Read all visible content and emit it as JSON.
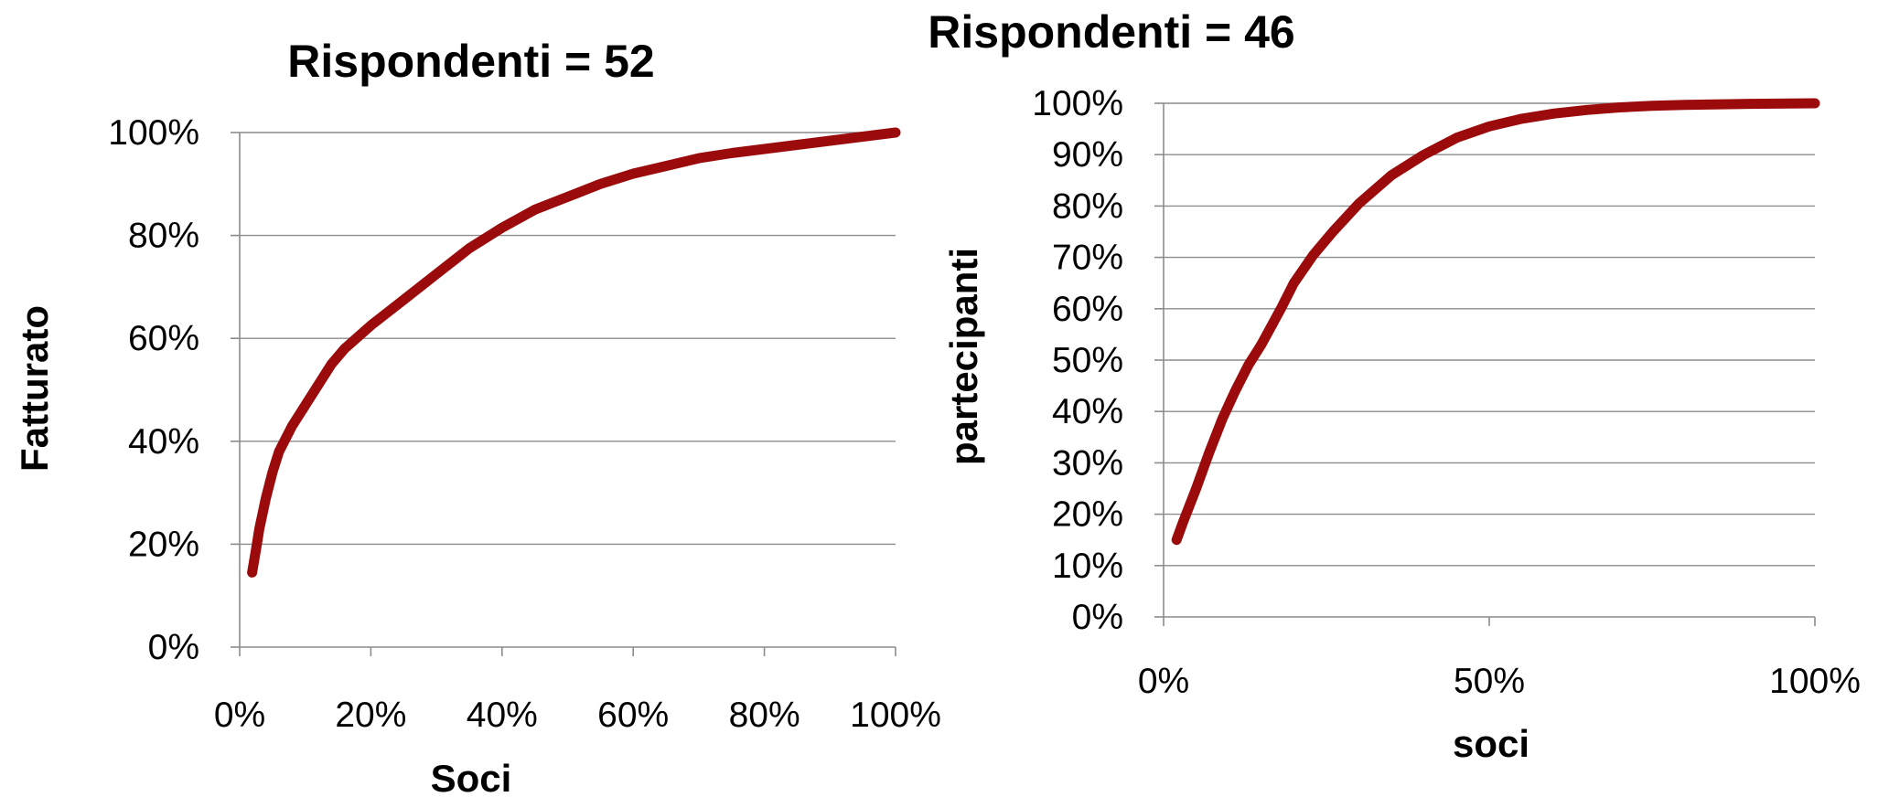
{
  "chart_data": [
    {
      "type": "line",
      "title": "Rispondenti = 52",
      "xlabel": "Soci",
      "ylabel": "Fatturato",
      "xlim": [
        0,
        100
      ],
      "ylim": [
        0,
        100
      ],
      "x_ticks": [
        "0%",
        "20%",
        "40%",
        "60%",
        "80%",
        "100%"
      ],
      "y_ticks": [
        "0%",
        "20%",
        "40%",
        "60%",
        "80%",
        "100%"
      ],
      "x_tick_values": [
        0,
        20,
        40,
        60,
        80,
        100
      ],
      "y_tick_values": [
        0,
        20,
        40,
        60,
        80,
        100
      ],
      "grid": "horizontal",
      "color": "#9c0b0b",
      "series": [
        {
          "x": [
            1.9,
            2.5,
            3.0,
            4.0,
            5.0,
            6.0,
            8.0,
            10.0,
            12.0,
            14.0,
            16.0,
            20.0,
            25.0,
            30.0,
            35.0,
            40.0,
            45.0,
            50.0,
            55.0,
            60.0,
            65.0,
            70.0,
            75.0,
            80.0,
            85.0,
            90.0,
            95.0,
            100.0
          ],
          "y": [
            14.5,
            19.0,
            23.0,
            29.0,
            34.0,
            38.0,
            43.0,
            47.0,
            51.0,
            55.0,
            58.0,
            62.5,
            67.5,
            72.5,
            77.5,
            81.5,
            85.0,
            87.5,
            90.0,
            92.0,
            93.5,
            95.0,
            96.0,
            96.8,
            97.6,
            98.4,
            99.2,
            100.0
          ]
        }
      ]
    },
    {
      "type": "line",
      "title": "Rispondenti = 46",
      "xlabel": "soci",
      "ylabel": "partecipanti",
      "xlim": [
        0,
        100
      ],
      "ylim": [
        0,
        100
      ],
      "x_ticks": [
        "0%",
        "50%",
        "100%"
      ],
      "y_ticks": [
        "0%",
        "10%",
        "20%",
        "30%",
        "40%",
        "50%",
        "60%",
        "70%",
        "80%",
        "90%",
        "100%"
      ],
      "x_tick_values": [
        0,
        50,
        100
      ],
      "y_tick_values": [
        0,
        10,
        20,
        30,
        40,
        50,
        60,
        70,
        80,
        90,
        100
      ],
      "grid": "horizontal",
      "color": "#9c0b0b",
      "series": [
        {
          "x": [
            2.0,
            3.0,
            5.0,
            7.0,
            9.0,
            11.0,
            13.0,
            15.0,
            18.0,
            20.0,
            23.0,
            26.0,
            30.0,
            35.0,
            40.0,
            45.0,
            50.0,
            55.0,
            60.0,
            65.0,
            70.0,
            75.0,
            80.0,
            90.0,
            100.0
          ],
          "y": [
            15.0,
            18.5,
            25.0,
            32.0,
            38.5,
            44.0,
            49.0,
            53.0,
            60.0,
            65.0,
            70.5,
            75.0,
            80.5,
            86.0,
            90.0,
            93.3,
            95.5,
            97.0,
            98.0,
            98.7,
            99.2,
            99.5,
            99.7,
            99.9,
            100.0
          ]
        }
      ]
    }
  ]
}
